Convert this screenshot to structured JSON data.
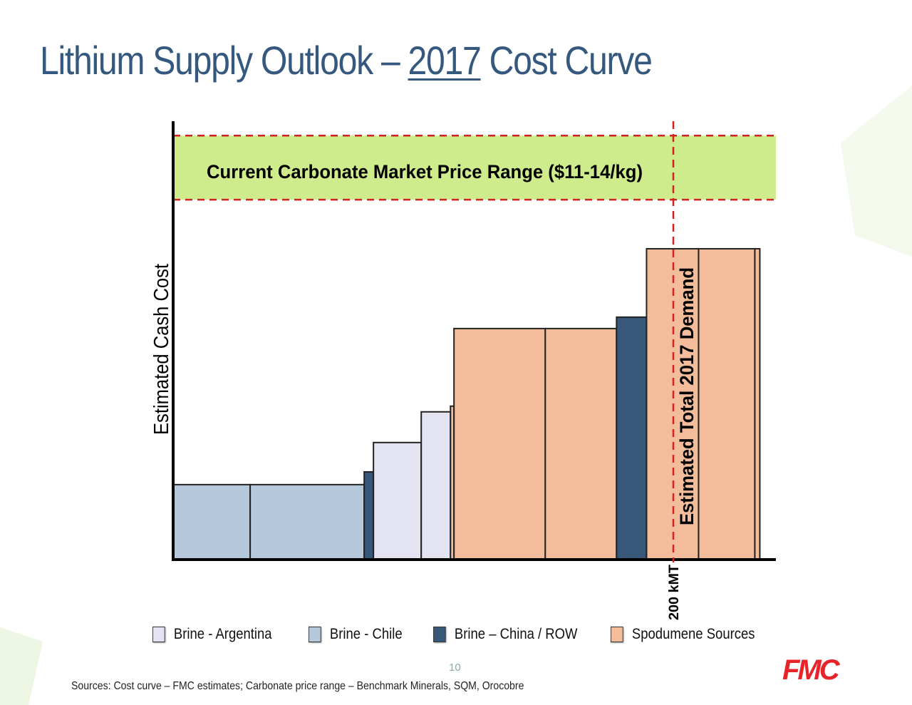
{
  "title": {
    "prefix": "Lithium Supply Outlook – ",
    "year": "2017",
    "suffix": " Cost Curve"
  },
  "chart_data": {
    "type": "bar",
    "subtype": "cost-curve (variable-width bars)",
    "ylabel": "Estimated Cash Cost",
    "xlabel": "",
    "x_unit": "kMT",
    "y_unit": "relative (no scale printed)",
    "xlim": [
      0,
      241
    ],
    "ylim": [
      0,
      100
    ],
    "grid": false,
    "legend_placement": "bottom",
    "series_colors": {
      "Brine - Argentina": "#e4e3f1",
      "Brine - Chile": "#b5c8dc",
      "Brine – China / ROW": "#38587a",
      "Spodumene Sources": "#f3bd9c"
    },
    "bars": [
      {
        "series": "Brine - Chile",
        "width": 30.8,
        "value": 17.1
      },
      {
        "series": "Brine - Chile",
        "width": 45.6,
        "value": 17.1
      },
      {
        "series": "Brine – China / ROW",
        "width": 3.7,
        "value": 20.0
      },
      {
        "series": "Brine - Argentina",
        "width": 19.1,
        "value": 26.7
      },
      {
        "series": "Brine - Argentina",
        "width": 11.7,
        "value": 33.7
      },
      {
        "series": "Spodumene Sources",
        "width": 1.4,
        "value": 35.0
      },
      {
        "series": "Spodumene Sources",
        "width": 36.5,
        "value": 52.7
      },
      {
        "series": "Spodumene Sources",
        "width": 28.5,
        "value": 52.7
      },
      {
        "series": "Brine – China / ROW",
        "width": 12.0,
        "value": 55.3
      },
      {
        "series": "Spodumene Sources",
        "width": 20.8,
        "value": 70.9
      },
      {
        "series": "Spodumene Sources",
        "width": 22.5,
        "value": 70.9
      },
      {
        "series": "Spodumene Sources",
        "width": 2.0,
        "value": 70.9
      }
    ],
    "price_band": {
      "label": "Current Carbonate Market Price Range ($11-14/kg)",
      "range": [
        82.1,
        96.7
      ],
      "color": "#cfec8c",
      "line_color": "#d42020"
    },
    "demand_line": {
      "x": 200,
      "label": "Estimated Total 2017 Demand",
      "tick_label": "200 kMT",
      "color": "#d42020"
    },
    "legend": [
      "Brine - Argentina",
      "Brine - Chile",
      "Brine – China / ROW",
      "Spodumene Sources"
    ]
  },
  "page_number": "10",
  "sources": "Sources: Cost curve – FMC estimates;  Carbonate price range – Benchmark Minerals, SQM, Orocobre",
  "logo": "FMC"
}
